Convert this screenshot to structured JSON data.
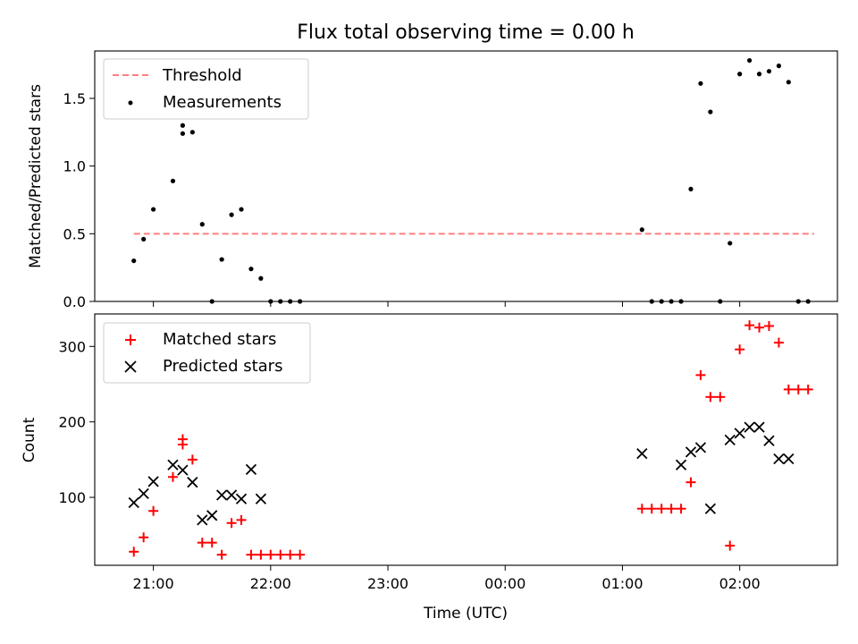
{
  "chart_data": [
    {
      "type": "scatter",
      "title": "Flux total observing time = 0.00 h",
      "ylabel": "Matched/Predicted stars",
      "xlim": [
        "20:30",
        "02:50"
      ],
      "ylim": [
        0,
        1.85
      ],
      "y_ticks": [
        0.0,
        0.5,
        1.0,
        1.5
      ],
      "y_tick_labels": [
        "0.0",
        "0.5",
        "1.0",
        "1.5"
      ],
      "x_ticks": [
        "21:00",
        "22:00",
        "23:00",
        "00:00",
        "01:00",
        "02:00"
      ],
      "legend": {
        "position": "upper-left",
        "entries": [
          "Threshold",
          "Measurements"
        ]
      },
      "threshold": {
        "name": "Threshold",
        "x": [
          "20:50",
          "02:38"
        ],
        "y": 0.5,
        "color": "#ff7f7f",
        "style": "dashed"
      },
      "series": [
        {
          "name": "Measurements",
          "marker": "dot",
          "color": "#000000",
          "x": [
            "20:50",
            "20:55",
            "21:00",
            "21:10",
            "21:15",
            "21:15",
            "21:20",
            "21:25",
            "21:30",
            "21:35",
            "21:40",
            "21:45",
            "21:50",
            "21:55",
            "22:00",
            "22:05",
            "22:10",
            "22:15",
            "01:10",
            "01:15",
            "01:20",
            "01:25",
            "01:30",
            "01:35",
            "01:40",
            "01:45",
            "01:50",
            "01:55",
            "02:00",
            "02:05",
            "02:10",
            "02:15",
            "02:20",
            "02:25",
            "02:30",
            "02:35"
          ],
          "y": [
            0.3,
            0.46,
            0.68,
            0.89,
            1.24,
            1.3,
            1.25,
            0.57,
            0.0,
            0.31,
            0.64,
            0.68,
            0.24,
            0.17,
            0.0,
            0.0,
            0.0,
            0.0,
            0.53,
            0.0,
            0.0,
            0.0,
            0.0,
            0.83,
            1.61,
            1.4,
            0.0,
            0.43,
            1.68,
            1.78,
            1.68,
            1.7,
            1.74,
            1.62,
            0.0,
            0.0
          ]
        }
      ]
    },
    {
      "type": "scatter",
      "title": "",
      "xlabel": "Time (UTC)",
      "ylabel": "Count",
      "xlim": [
        "20:30",
        "02:50"
      ],
      "ylim": [
        10,
        343
      ],
      "y_ticks": [
        100,
        200,
        300
      ],
      "y_tick_labels": [
        "100",
        "200",
        "300"
      ],
      "x_ticks": [
        "21:00",
        "22:00",
        "23:00",
        "00:00",
        "01:00",
        "02:00"
      ],
      "x_tick_labels": [
        "21:00",
        "22:00",
        "23:00",
        "00:00",
        "01:00",
        "02:00"
      ],
      "legend": {
        "position": "upper-left",
        "entries": [
          "Matched stars",
          "Predicted stars"
        ]
      },
      "series": [
        {
          "name": "Matched stars",
          "marker": "plus",
          "color": "#ff0000",
          "x": [
            "20:50",
            "20:55",
            "21:00",
            "21:10",
            "21:15",
            "21:15",
            "21:20",
            "21:25",
            "21:30",
            "21:35",
            "21:40",
            "21:45",
            "21:50",
            "21:55",
            "22:00",
            "22:05",
            "22:10",
            "22:15",
            "01:10",
            "01:15",
            "01:20",
            "01:25",
            "01:30",
            "01:35",
            "01:40",
            "01:45",
            "01:50",
            "01:55",
            "02:00",
            "02:05",
            "02:10",
            "02:15",
            "02:20",
            "02:25",
            "02:30",
            "02:35"
          ],
          "y": [
            28,
            47,
            82,
            127,
            170,
            177,
            150,
            40,
            40,
            24,
            66,
            70,
            24,
            24,
            24,
            24,
            24,
            24,
            85,
            85,
            85,
            85,
            85,
            120,
            262,
            233,
            233,
            36,
            296,
            328,
            325,
            327,
            305,
            243,
            243,
            243
          ]
        },
        {
          "name": "Predicted stars",
          "marker": "x",
          "color": "#000000",
          "x": [
            "20:50",
            "20:55",
            "21:00",
            "21:10",
            "21:15",
            "21:20",
            "21:25",
            "21:30",
            "21:35",
            "21:40",
            "21:45",
            "21:50",
            "21:55",
            "01:10",
            "01:30",
            "01:35",
            "01:40",
            "01:45",
            "01:55",
            "02:00",
            "02:05",
            "02:10",
            "02:15",
            "02:20",
            "02:25"
          ],
          "y": [
            93,
            105,
            121,
            143,
            136,
            120,
            70,
            76,
            103,
            103,
            98,
            137,
            98,
            158,
            143,
            160,
            166,
            85,
            176,
            185,
            193,
            193,
            175,
            151,
            151
          ]
        }
      ]
    }
  ]
}
